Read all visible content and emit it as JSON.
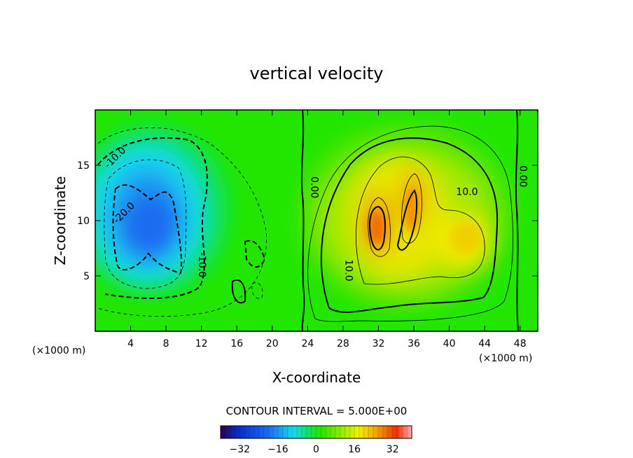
{
  "chart_data": {
    "type": "heatmap",
    "title": "vertical velocity",
    "xlabel": "X-coordinate",
    "ylabel": "Z-coordinate",
    "x_unit_left": "(×1000 m)",
    "x_unit_right": "(×1000 m)",
    "x_ticks": [
      4,
      8,
      12,
      16,
      20,
      24,
      28,
      32,
      36,
      40,
      44,
      48
    ],
    "y_ticks": [
      5,
      10,
      15
    ],
    "xlim": [
      0,
      50
    ],
    "ylim": [
      0,
      20
    ],
    "contour_interval_text": "CONTOUR INTERVAL = 5.000E+00",
    "colorbar": {
      "range": [
        -40,
        40
      ],
      "ticks": [
        -32,
        -16,
        0,
        16,
        32
      ],
      "colors": [
        "#2b0050",
        "#0a2ecf",
        "#1a6cf0",
        "#18d8f0",
        "#10e070",
        "#22e600",
        "#8ae800",
        "#f0f000",
        "#f0a000",
        "#f03000",
        "#ffb0b0"
      ]
    },
    "contour_labels": [
      {
        "text": "-10.0",
        "x": 2.5,
        "z": 15.5
      },
      {
        "text": "-20.0",
        "x": 3.5,
        "z": 10.5
      },
      {
        "text": "-10.0",
        "x": 11.7,
        "z": 6.0
      },
      {
        "text": "0.00",
        "x": 24.4,
        "z": 13.0
      },
      {
        "text": "10.0",
        "x": 42.0,
        "z": 12.3
      },
      {
        "text": "10.0",
        "x": 28.3,
        "z": 5.5
      },
      {
        "text": "0.00",
        "x": 48.0,
        "z": 14.0
      }
    ],
    "extrema": [
      {
        "sign": "down",
        "x": 6.5,
        "z": 9.0,
        "value": -30
      },
      {
        "sign": "up",
        "x": 32.0,
        "z": 10.0,
        "value": 30
      },
      {
        "sign": "up",
        "x": 35.5,
        "z": 11.0,
        "value": 25
      },
      {
        "sign": "up",
        "x": 43.0,
        "z": 8.5,
        "value": 18
      }
    ]
  }
}
